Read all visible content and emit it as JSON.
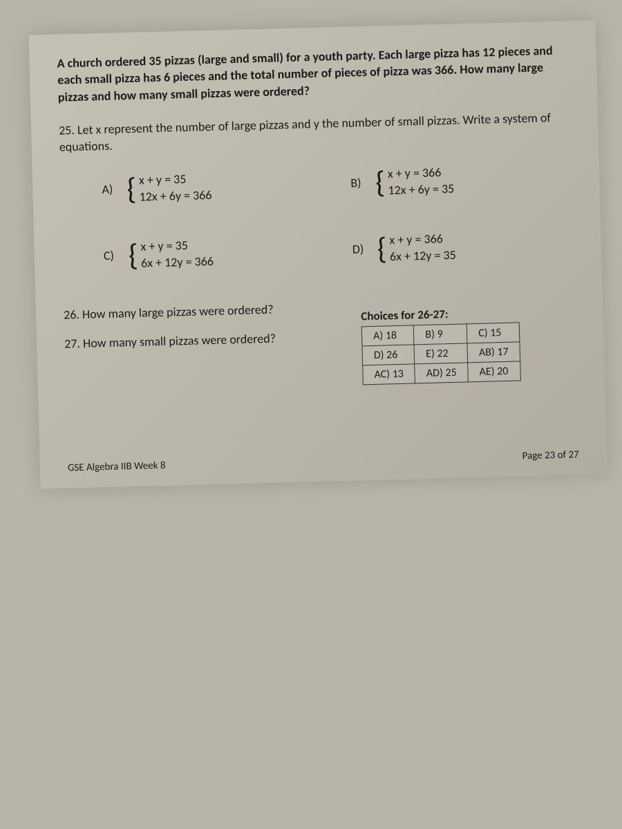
{
  "intro": {
    "line1": "A church ordered 35 pizzas (large and small) for a youth party. Each large pizza has 12 pieces and each small pizza has 6 pieces and the total number of pieces of pizza was 366. How many large pizzas and how many small pizzas were ordered?"
  },
  "q25": {
    "text": "25. Let x represent the number of large pizzas and y the number of small pizzas. Write a system of equations."
  },
  "options": {
    "A": {
      "label": "A)",
      "eq1": "x + y = 35",
      "eq2": "12x + 6y = 366"
    },
    "B": {
      "label": "B)",
      "eq1": "x + y = 366",
      "eq2": "12x + 6y = 35"
    },
    "C": {
      "label": "C)",
      "eq1": "x + y = 35",
      "eq2": "6x + 12y = 366"
    },
    "D": {
      "label": "D)",
      "eq1": "x + y = 366",
      "eq2": "6x + 12y = 35"
    }
  },
  "q26": {
    "text": "26. How many large pizzas were ordered?"
  },
  "q27": {
    "text": "27. How many small pizzas were ordered?"
  },
  "choices": {
    "title": "Choices for 26-27:",
    "rows": [
      [
        "A) 18",
        "B) 9",
        "C) 15"
      ],
      [
        "D) 26",
        "E) 22",
        "AB) 17"
      ],
      [
        "AC) 13",
        "AD) 25",
        "AE) 20"
      ]
    ]
  },
  "footer": {
    "left": "GSE Algebra IIB Week 8",
    "right": "Page 23 of 27"
  },
  "colors": {
    "page_bg": "#b8b4a8",
    "text": "#1a1a1a",
    "border": "#333333"
  }
}
